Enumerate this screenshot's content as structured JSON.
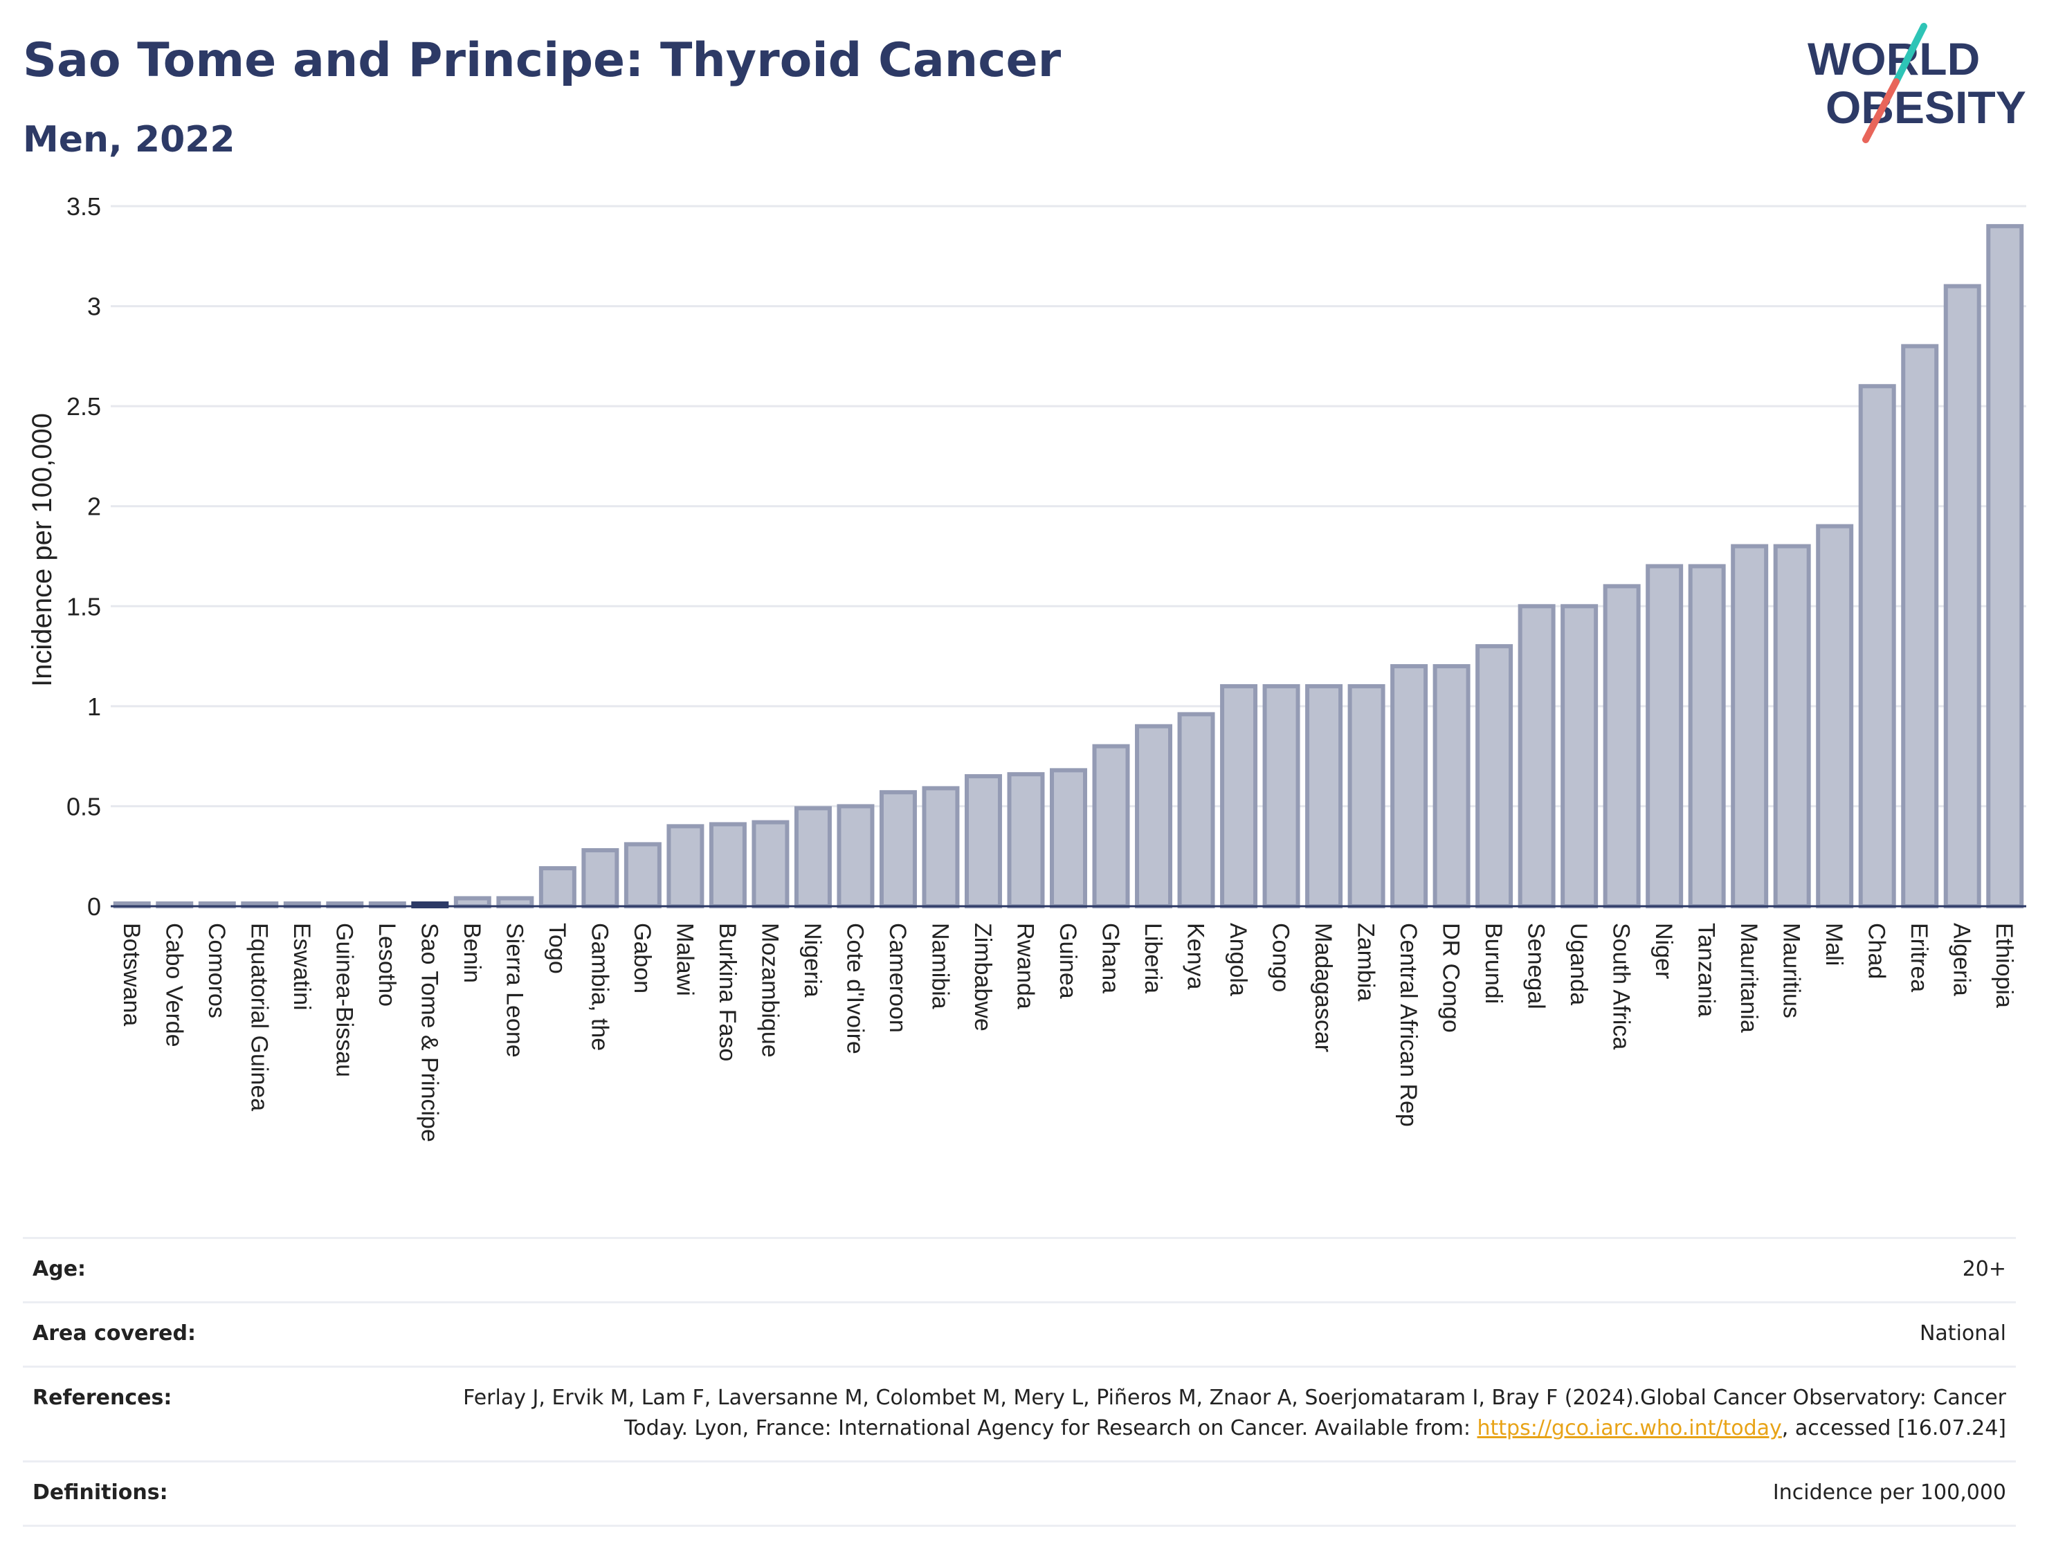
{
  "header": {
    "title": "Sao Tome and Principe: Thyroid Cancer",
    "subtitle": "Men, 2022"
  },
  "logo": {
    "line1": "WORLD",
    "line2": "OBESITY",
    "colors": {
      "text": "#2d3a66",
      "slash_top": "#2ec4b6",
      "slash_bottom": "#e8655a"
    }
  },
  "colors": {
    "bar_fill": "#bcc1d0",
    "bar_stroke": "#949bb4",
    "highlight": "#2d3a66",
    "grid": "#e6e8ee",
    "axis": "#2d3a66"
  },
  "chart_data": {
    "type": "bar",
    "title": "Sao Tome and Principe: Thyroid Cancer",
    "subtitle": "Men, 2022",
    "ylabel": "Incidence per 100,000",
    "xlabel": "",
    "ylim": [
      0,
      3.5
    ],
    "yticks": [
      0,
      0.5,
      1,
      1.5,
      2,
      2.5,
      3,
      3.5
    ],
    "ytick_labels": [
      "0",
      "0.5",
      "1",
      "1.5",
      "2",
      "2.5",
      "3",
      "3.5"
    ],
    "grid": true,
    "legend": "none",
    "highlight": "Sao Tome & Principe",
    "categories": [
      "Botswana",
      "Cabo Verde",
      "Comoros",
      "Equatorial Guinea",
      "Eswatini",
      "Guinea-Bissau",
      "Lesotho",
      "Sao Tome & Principe",
      "Benin",
      "Sierra Leone",
      "Togo",
      "Gambia, the",
      "Gabon",
      "Malawi",
      "Burkina Faso",
      "Mozambique",
      "Nigeria",
      "Cote d'Ivoire",
      "Cameroon",
      "Namibia",
      "Zimbabwe",
      "Rwanda",
      "Guinea",
      "Ghana",
      "Liberia",
      "Kenya",
      "Angola",
      "Congo",
      "Madagascar",
      "Zambia",
      "Central African Rep",
      "DR Congo",
      "Burundi",
      "Senegal",
      "Uganda",
      "South Africa",
      "Niger",
      "Tanzania",
      "Mauritania",
      "Mauritius",
      "Mali",
      "Chad",
      "Eritrea",
      "Algeria",
      "Ethiopia"
    ],
    "values": [
      0.01,
      0.01,
      0.01,
      0.01,
      0.01,
      0.01,
      0.01,
      0.01,
      0.04,
      0.04,
      0.19,
      0.28,
      0.31,
      0.4,
      0.41,
      0.42,
      0.49,
      0.5,
      0.57,
      0.59,
      0.65,
      0.66,
      0.68,
      0.8,
      0.9,
      0.96,
      1.1,
      1.1,
      1.1,
      1.1,
      1.2,
      1.2,
      1.3,
      1.5,
      1.5,
      1.6,
      1.7,
      1.7,
      1.8,
      1.8,
      1.9,
      2.6,
      2.8,
      3.1,
      3.4
    ]
  },
  "info": {
    "age_label": "Age:",
    "age_value": "20+",
    "area_label": "Area covered:",
    "area_value": "National",
    "references_label": "References:",
    "references_text_1": "Ferlay J, Ervik M, Lam F, Laversanne M, Colombet M, Mery L, Piñeros M, Znaor A, Soerjomataram I, Bray F (2024).Global Cancer Observatory: Cancer Today. Lyon, France: International Agency for Research on Cancer. Available from: ",
    "references_link": "https://gco.iarc.who.int/today",
    "references_text_2": ", accessed [16.07.24]",
    "definitions_label": "Definitions:",
    "definitions_value": "Incidence per 100,000"
  }
}
